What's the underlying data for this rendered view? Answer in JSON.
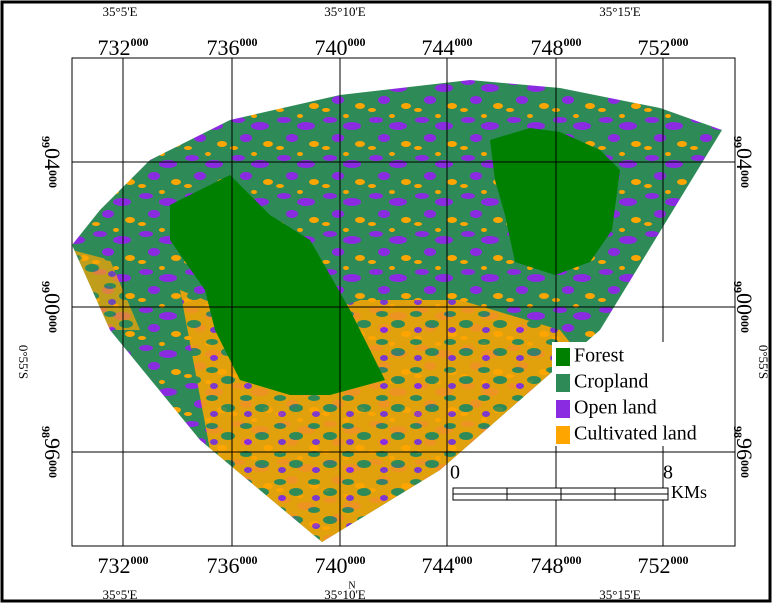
{
  "map": {
    "top_longitude_labels": [
      "35°5'E",
      "35°10'E",
      "35°15'E"
    ],
    "bottom_longitude_labels": [
      "35°5'E",
      "35°10'E",
      "35°15'E"
    ],
    "north_label": "N",
    "top_easting_labels": [
      {
        "main": "732",
        "sup": "000"
      },
      {
        "main": "736",
        "sup": "000"
      },
      {
        "main": "740",
        "sup": "000"
      },
      {
        "main": "744",
        "sup": "000"
      },
      {
        "main": "748",
        "sup": "000"
      },
      {
        "main": "752",
        "sup": "000"
      }
    ],
    "bottom_easting_labels": [
      {
        "main": "732",
        "sup": "000"
      },
      {
        "main": "736",
        "sup": "000"
      },
      {
        "main": "740",
        "sup": "000"
      },
      {
        "main": "744",
        "sup": "000"
      },
      {
        "main": "748",
        "sup": "000"
      },
      {
        "main": "752",
        "sup": "000"
      }
    ],
    "left_northing_labels": [
      {
        "pre": "99",
        "main": "04",
        "sup": "000"
      },
      {
        "pre": "99",
        "main": "00",
        "sup": "000"
      },
      {
        "pre": "98",
        "main": "96",
        "sup": "000"
      }
    ],
    "right_northing_labels": [
      {
        "pre": "99",
        "main": "04",
        "sup": "000"
      },
      {
        "pre": "99",
        "main": "00",
        "sup": "000"
      },
      {
        "pre": "98",
        "main": "96",
        "sup": "000"
      }
    ],
    "left_latitude_label": "0°55'S",
    "right_latitude_label": "0°55'S",
    "legend": [
      {
        "label": "Forest",
        "color": "#008000"
      },
      {
        "label": "Cropland",
        "color": "#2e8b57"
      },
      {
        "label": "Open land",
        "color": "#8a2be2"
      },
      {
        "label": "Cultivated land",
        "color": "#ffa500"
      }
    ],
    "scale": {
      "start": "0",
      "end": "8",
      "unit": "KMs"
    }
  }
}
